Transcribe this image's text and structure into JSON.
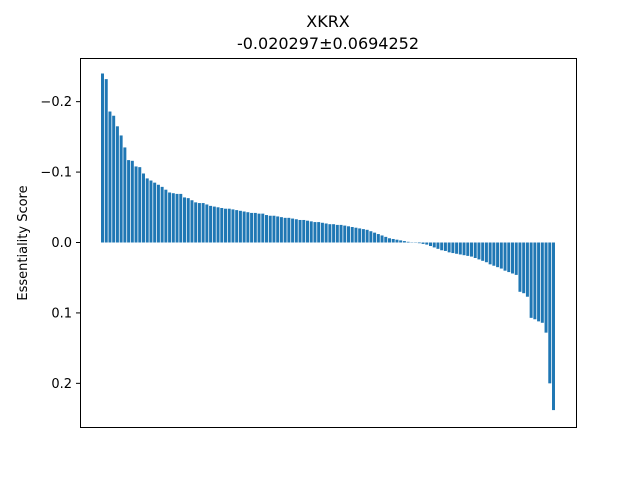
{
  "chart_data": {
    "type": "bar",
    "title": "XKRX",
    "subtitle": "-0.020297±0.0694252",
    "xlabel": "",
    "ylabel": "Essentiality Score",
    "ylim": [
      0.262,
      -0.262
    ],
    "y_inverted": true,
    "grid": false,
    "x_ticks_visible": false,
    "yticks": [
      -0.2,
      -0.1,
      0.0,
      0.1,
      0.2
    ],
    "ytick_labels": [
      "−0.2",
      "−0.1",
      "0.0",
      "0.1",
      "0.2"
    ],
    "bar_color": "#1f77b4",
    "values": [
      -0.24,
      -0.232,
      -0.186,
      -0.18,
      -0.165,
      -0.152,
      -0.135,
      -0.117,
      -0.116,
      -0.108,
      -0.107,
      -0.098,
      -0.091,
      -0.088,
      -0.085,
      -0.082,
      -0.079,
      -0.075,
      -0.071,
      -0.07,
      -0.069,
      -0.069,
      -0.064,
      -0.063,
      -0.06,
      -0.057,
      -0.056,
      -0.056,
      -0.054,
      -0.052,
      -0.051,
      -0.05,
      -0.049,
      -0.048,
      -0.048,
      -0.047,
      -0.046,
      -0.045,
      -0.044,
      -0.043,
      -0.042,
      -0.042,
      -0.041,
      -0.041,
      -0.039,
      -0.038,
      -0.038,
      -0.037,
      -0.036,
      -0.035,
      -0.035,
      -0.034,
      -0.033,
      -0.032,
      -0.032,
      -0.031,
      -0.03,
      -0.029,
      -0.029,
      -0.028,
      -0.027,
      -0.026,
      -0.026,
      -0.025,
      -0.025,
      -0.024,
      -0.023,
      -0.022,
      -0.021,
      -0.02,
      -0.019,
      -0.018,
      -0.016,
      -0.014,
      -0.012,
      -0.01,
      -0.008,
      -0.006,
      -0.005,
      -0.004,
      -0.003,
      -0.002,
      -0.001,
      0.0,
      0.0,
      0.001,
      0.002,
      0.003,
      0.005,
      0.007,
      0.009,
      0.011,
      0.012,
      0.014,
      0.015,
      0.016,
      0.017,
      0.018,
      0.019,
      0.02,
      0.022,
      0.024,
      0.026,
      0.028,
      0.031,
      0.033,
      0.035,
      0.037,
      0.04,
      0.042,
      0.044,
      0.046,
      0.07,
      0.072,
      0.077,
      0.107,
      0.109,
      0.112,
      0.114,
      0.128,
      0.2,
      0.238
    ]
  }
}
